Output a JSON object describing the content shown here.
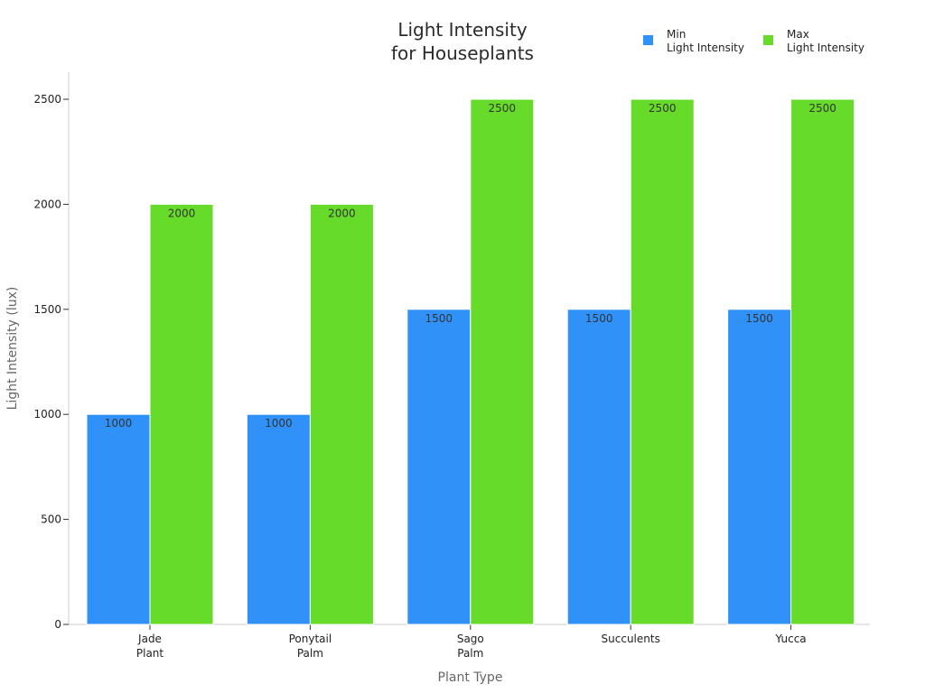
{
  "chart_data": {
    "type": "bar",
    "title": [
      "Light Intensity",
      "for Houseplants"
    ],
    "xlabel": "Plant Type",
    "ylabel": "Light Intensity (lux)",
    "categories": [
      [
        "Jade",
        "Plant"
      ],
      [
        "Ponytail",
        "Palm"
      ],
      [
        "Sago",
        "Palm"
      ],
      [
        "Succulents"
      ],
      [
        "Yucca"
      ]
    ],
    "series": [
      {
        "name": [
          "Min",
          "Light Intensity"
        ],
        "color": "#3092f8",
        "values": [
          1000,
          1000,
          1500,
          1500,
          1500
        ]
      },
      {
        "name": [
          "Max",
          "Light Intensity"
        ],
        "color": "#66db29",
        "values": [
          2000,
          2000,
          2500,
          2500,
          2500
        ]
      }
    ],
    "ylim": [
      0,
      2500
    ],
    "yticks": [
      0,
      500,
      1000,
      1500,
      2000,
      2500
    ],
    "legend_position": "top-right",
    "grid": false
  }
}
